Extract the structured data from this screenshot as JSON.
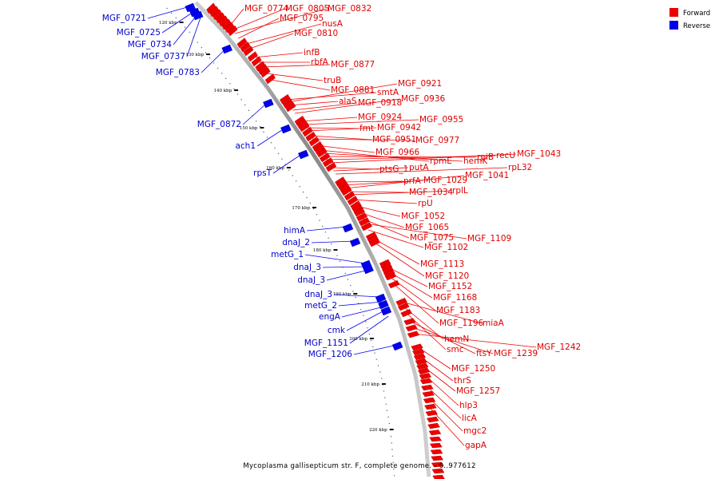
{
  "caption": "Mycoplasma gallisepticum str. F, complete genome. - 0..977612",
  "colors": {
    "forward": "#ee0000",
    "reverse": "#0000ee",
    "backbone": "#a0a0a0"
  },
  "legend": [
    {
      "label": "Forward",
      "strand": "forward"
    },
    {
      "label": "Reverse",
      "strand": "reverse"
    }
  ],
  "ticks": [
    "120 kbp",
    "130 kbp",
    "140 kbp",
    "150 kbp",
    "160 kbp",
    "170 kbp",
    "180 kbp",
    "190 kbp",
    "200 kbp",
    "210 kbp",
    "220 kbp"
  ],
  "forward_labels": [
    "MGF_0774",
    "MGF_0805",
    "MGF_0832",
    "MGF_0795",
    "nusA",
    "MGF_0810",
    "infB",
    "rbfA",
    "MGF_0877",
    "truB",
    "MGF_0881",
    "smtA",
    "MGF_0921",
    "alaS",
    "MGF_0918",
    "MGF_0936",
    "MGF_0924",
    "MGF_0955",
    "fmt",
    "MGF_0942",
    "MGF_0951",
    "MGF_0977",
    "MGF_0966",
    "rpmE",
    "hemK",
    "rpiB",
    "recU",
    "MGF_1043",
    "ptsG_1",
    "putA",
    "rpL32",
    "prfA",
    "MGF_1029",
    "MGF_1041",
    "MGF_1034",
    "rplL",
    "rpU",
    "MGF_1052",
    "MGF_1065",
    "MGF_1075",
    "MGF_1109",
    "MGF_1102",
    "MGF_1113",
    "MGF_1120",
    "MGF_1152",
    "MGF_1168",
    "MGF_1183",
    "MGF_1196",
    "miaA",
    "hemN",
    "smc",
    "ftsY",
    "MGF_1239",
    "MGF_1242",
    "MGF_1250",
    "thrS",
    "MGF_1257",
    "hlp3",
    "licA",
    "mgc2",
    "gapA"
  ],
  "reverse_labels": [
    "MGF_0721",
    "MGF_0725",
    "MGF_0734",
    "MGF_0737",
    "MGF_0783",
    "MGF_0872",
    "ach1",
    "rpsT",
    "himA",
    "dnaJ_2",
    "metG_1",
    "dnaJ_3",
    "dnaJ_3",
    "dnaJ_3",
    "metG_2",
    "engA",
    "cmk",
    "MGF_1151",
    "MGF_1206"
  ]
}
